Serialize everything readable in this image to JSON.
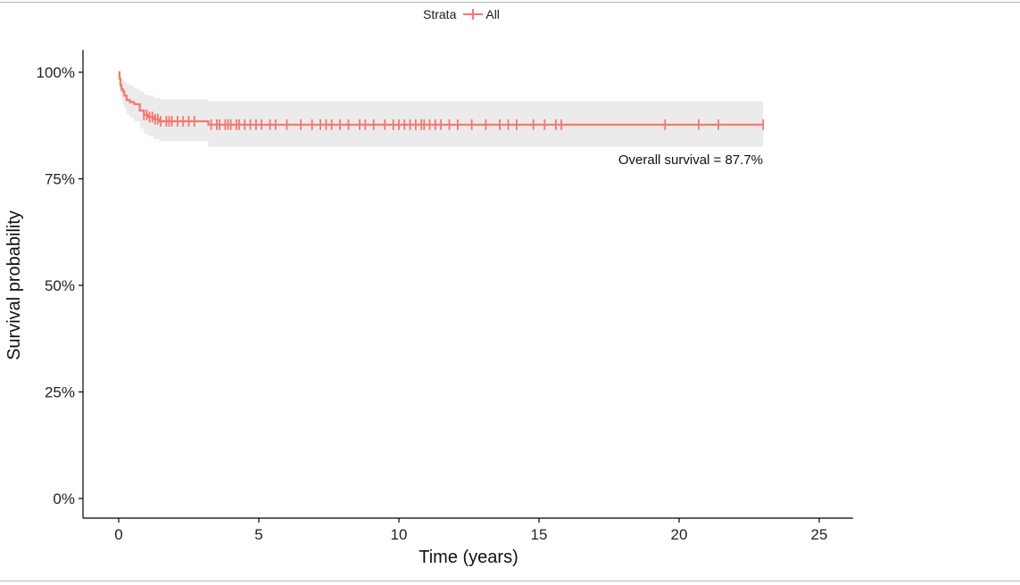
{
  "chart_data": {
    "type": "line",
    "subtype": "kaplan-meier",
    "title": "",
    "xlabel": "Time (years)",
    "ylabel": "Survival probability",
    "xlim": [
      -1.2,
      26.2
    ],
    "ylim": [
      0,
      1.05
    ],
    "x_ticks": [
      0,
      5,
      10,
      15,
      20,
      25
    ],
    "x_tick_labels": [
      "0",
      "5",
      "10",
      "15",
      "20",
      "25"
    ],
    "y_ticks": [
      0,
      0.25,
      0.5,
      0.75,
      1.0
    ],
    "y_tick_labels": [
      "0%",
      "25%",
      "50%",
      "75%",
      "100%"
    ],
    "grid": false,
    "legend": {
      "title": "Strata",
      "position": "top",
      "entries": [
        "All"
      ]
    },
    "annotation": "Overall survival = 87.7%",
    "series": [
      {
        "name": "All",
        "color": "#f8766d",
        "ci_color": "#ebebeb",
        "step_x": [
          0,
          0.03,
          0.06,
          0.1,
          0.15,
          0.2,
          0.28,
          0.4,
          0.55,
          0.75,
          0.9,
          1.05,
          1.25,
          1.45,
          3.2,
          23
        ],
        "step_y": [
          1.0,
          0.985,
          0.97,
          0.96,
          0.955,
          0.945,
          0.935,
          0.93,
          0.925,
          0.91,
          0.9,
          0.895,
          0.89,
          0.885,
          0.877,
          0.877
        ],
        "ci_upper": [
          1.0,
          0.995,
          0.99,
          0.985,
          0.983,
          0.978,
          0.972,
          0.968,
          0.962,
          0.955,
          0.948,
          0.945,
          0.94,
          0.937,
          0.932,
          0.932
        ],
        "ci_lower": [
          1.0,
          0.962,
          0.95,
          0.935,
          0.925,
          0.915,
          0.9,
          0.893,
          0.885,
          0.868,
          0.855,
          0.85,
          0.843,
          0.838,
          0.825,
          0.825
        ],
        "censor_x": [
          0.9,
          1.0,
          1.1,
          1.2,
          1.3,
          1.4,
          1.5,
          1.7,
          1.8,
          1.9,
          2.1,
          2.3,
          2.5,
          2.7,
          3.3,
          3.5,
          3.6,
          3.8,
          3.9,
          4.0,
          4.2,
          4.3,
          4.5,
          4.7,
          4.9,
          5.1,
          5.4,
          5.6,
          6.0,
          6.5,
          6.9,
          7.2,
          7.4,
          7.6,
          7.9,
          8.2,
          8.6,
          8.8,
          9.1,
          9.5,
          9.8,
          10.0,
          10.2,
          10.4,
          10.6,
          10.8,
          10.9,
          11.1,
          11.3,
          11.5,
          11.8,
          12.1,
          12.6,
          13.1,
          13.6,
          13.9,
          14.2,
          14.8,
          15.2,
          15.6,
          15.8,
          19.5,
          20.7,
          21.4,
          23.0
        ]
      }
    ]
  }
}
